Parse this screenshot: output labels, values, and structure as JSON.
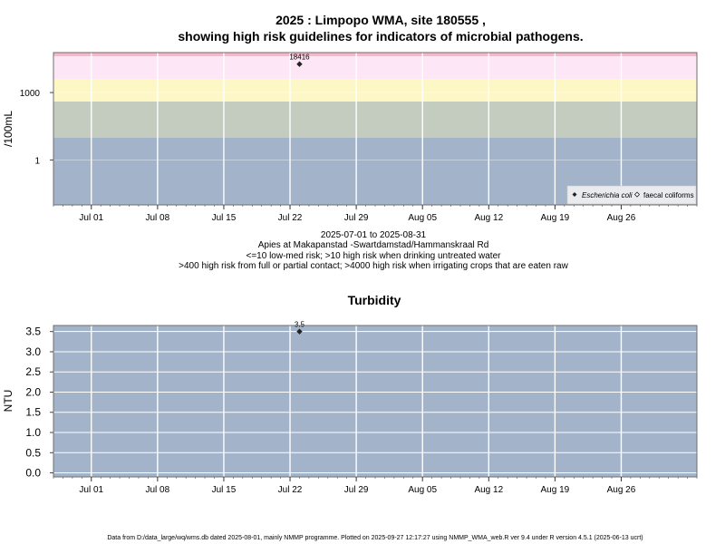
{
  "chart_data": [
    {
      "type": "scatter",
      "title_line1": "2025 : Limpopo WMA, site 180555 ,",
      "title_line2": "showing high risk guidelines for indicators of microbial pathogens.",
      "ylabel": "/100mL",
      "y_scale": "log",
      "y_tick_labels": [
        "1",
        "1000"
      ],
      "x_range": [
        "2025-06-27",
        "2025-09-03"
      ],
      "x_tick_labels": [
        "Jul 01",
        "Jul 08",
        "Jul 15",
        "Jul 22",
        "Jul 29",
        "Aug 05",
        "Aug 12",
        "Aug 19",
        "Aug 26"
      ],
      "x_tick_dates": [
        "2025-07-01",
        "2025-07-08",
        "2025-07-15",
        "2025-07-22",
        "2025-07-29",
        "2025-08-05",
        "2025-08-12",
        "2025-08-19",
        "2025-08-26"
      ],
      "risk_bands": [
        {
          "from": 0.01,
          "to": 10,
          "color": "#a2b3ca"
        },
        {
          "from": 10,
          "to": 400,
          "color": "#c3ccbf"
        },
        {
          "from": 400,
          "to": 4000,
          "color": "#fdf7c6"
        },
        {
          "from": 4000,
          "to": 60000,
          "color": "#fde6f6"
        }
      ],
      "series": [
        {
          "name": "Escherichia coli",
          "marker": "filled-diamond",
          "points": [
            {
              "x": "2025-07-23",
              "y": 18416,
              "label": "18416"
            }
          ]
        },
        {
          "name": "faecal coliforms",
          "marker": "open-diamond",
          "points": []
        }
      ],
      "legend_position": "bottom-right",
      "grid": true,
      "caption_lines": [
        "2025-07-01 to 2025-08-31",
        "Apies at Makapanstad -Swartdamstad/Hammanskraal Rd",
        "<=10 low-med risk; >10 high risk when drinking untreated water",
        ">400 high risk from full or partial contact; >4000 high risk when irrigating crops that are eaten raw"
      ]
    },
    {
      "type": "scatter",
      "title": "Turbidity",
      "ylabel": "NTU",
      "ylim": [
        -0.1,
        3.65
      ],
      "y_ticks": [
        0.0,
        0.5,
        1.0,
        1.5,
        2.0,
        2.5,
        3.0,
        3.5
      ],
      "y_tick_labels": [
        "0.0",
        "0.5",
        "1.0",
        "1.5",
        "2.0",
        "2.5",
        "3.0",
        "3.5"
      ],
      "x_range": [
        "2025-06-27",
        "2025-09-03"
      ],
      "x_tick_labels": [
        "Jul 01",
        "Jul 08",
        "Jul 15",
        "Jul 22",
        "Jul 29",
        "Aug 05",
        "Aug 12",
        "Aug 19",
        "Aug 26"
      ],
      "x_tick_dates": [
        "2025-07-01",
        "2025-07-08",
        "2025-07-15",
        "2025-07-22",
        "2025-07-29",
        "2025-08-05",
        "2025-08-12",
        "2025-08-19",
        "2025-08-26"
      ],
      "background_color": "#a2b3ca",
      "grid": true,
      "series": [
        {
          "marker": "filled-diamond",
          "points": [
            {
              "x": "2025-07-23",
              "y": 3.5,
              "label": "3.5"
            }
          ]
        }
      ]
    }
  ],
  "footer": "Data from D:/data_large/wq/wms.db dated 2025-08-01, mainly NMMP programme. Plotted on 2025-09-27 12:17:27 using NMMP_WMA_web.R ver 9.4 under R version 4.5.1 (2025-06-13 ucrt)"
}
